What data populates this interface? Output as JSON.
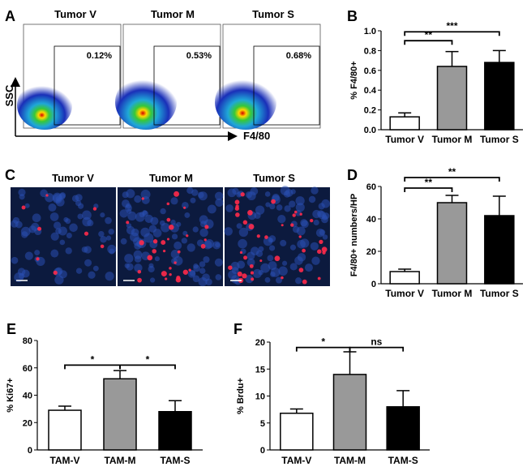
{
  "panels": {
    "A": {
      "label": "A",
      "titles": [
        "Tumor V",
        "Tumor M",
        "Tumor S"
      ],
      "gate_percent": [
        "0.12%",
        "0.53%",
        "0.68%"
      ],
      "y_axis": "SSC",
      "x_axis": "F4/80"
    },
    "C": {
      "label": "C",
      "titles": [
        "Tumor V",
        "Tumor M",
        "Tumor S"
      ]
    },
    "B": {
      "label": "B"
    },
    "D": {
      "label": "D"
    },
    "E": {
      "label": "E"
    },
    "F": {
      "label": "F"
    }
  },
  "colors": {
    "white_bar": "#ffffff",
    "gray_bar": "#999999",
    "black_bar": "#000000",
    "image_bg": "#0c1a3e"
  },
  "chart_data": [
    {
      "panel": "B",
      "type": "bar",
      "categories": [
        "Tumor V",
        "Tumor M",
        "Tumor S"
      ],
      "values": [
        0.13,
        0.64,
        0.68
      ],
      "errors": [
        0.04,
        0.15,
        0.12
      ],
      "fills": [
        "#ffffff",
        "#999999",
        "#000000"
      ],
      "ylabel": "% F4/80+",
      "ylim": [
        0,
        1.0
      ],
      "yticks": [
        "0.0",
        "0.2",
        "0.4",
        "0.6",
        "0.8",
        "1.0"
      ],
      "significance": [
        {
          "from": 0,
          "to": 1,
          "label": "**",
          "level": 0.9
        },
        {
          "from": 0,
          "to": 2,
          "label": "***",
          "level": 0.99
        }
      ]
    },
    {
      "panel": "D",
      "type": "bar",
      "categories": [
        "Tumor V",
        "Tumor M",
        "Tumor S"
      ],
      "values": [
        7.5,
        50,
        42
      ],
      "errors": [
        1.5,
        4.5,
        12
      ],
      "fills": [
        "#ffffff",
        "#999999",
        "#000000"
      ],
      "ylabel": "F4/80+ numbers/HP",
      "ylim": [
        0,
        60
      ],
      "yticks": [
        "0",
        "20",
        "40",
        "60"
      ],
      "significance": [
        {
          "from": 0,
          "to": 1,
          "label": "**",
          "level": 59
        },
        {
          "from": 0,
          "to": 2,
          "label": "**",
          "level": 65.5
        }
      ]
    },
    {
      "panel": "E",
      "type": "bar",
      "categories": [
        "TAM-V",
        "TAM-M",
        "TAM-S"
      ],
      "values": [
        29,
        52,
        28
      ],
      "errors": [
        3,
        6,
        8
      ],
      "fills": [
        "#ffffff",
        "#999999",
        "#000000"
      ],
      "ylabel": "% Ki67+",
      "ylim": [
        0,
        80
      ],
      "yticks": [
        "0",
        "20",
        "40",
        "60",
        "80"
      ],
      "significance": [
        {
          "from": 0,
          "to": 1,
          "label": "*",
          "level": 62
        },
        {
          "from": 1,
          "to": 2,
          "label": "*",
          "level": 62
        }
      ]
    },
    {
      "panel": "F",
      "type": "bar",
      "categories": [
        "TAM-V",
        "TAM-M",
        "TAM-S"
      ],
      "values": [
        6.8,
        14,
        8
      ],
      "errors": [
        0.8,
        4.2,
        3
      ],
      "fills": [
        "#ffffff",
        "#999999",
        "#000000"
      ],
      "ylabel": "% Brdu+",
      "ylim": [
        0,
        20
      ],
      "yticks": [
        "0",
        "5",
        "10",
        "15",
        "20"
      ],
      "significance": [
        {
          "from": 0,
          "to": 1,
          "label": "*",
          "level": 19
        },
        {
          "from": 1,
          "to": 2,
          "label": "ns",
          "level": 19
        }
      ]
    }
  ]
}
